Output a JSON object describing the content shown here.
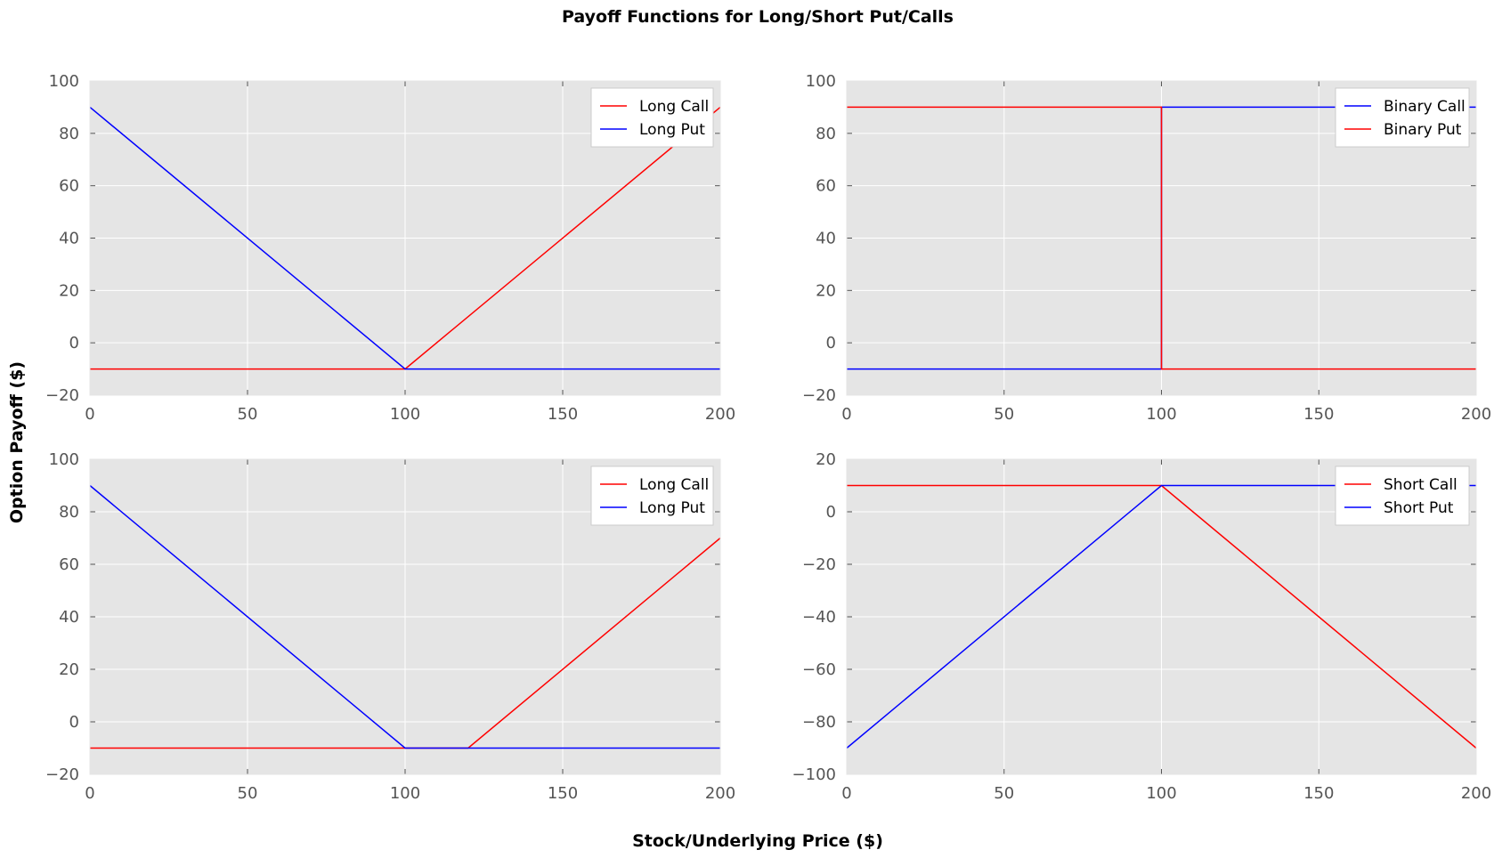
{
  "title": "Payoff Functions for Long/Short Put/Calls",
  "xlabel": "Stock/Underlying Price ($)",
  "ylabel": "Option Payoff ($)",
  "colors": {
    "axes_bg": "#e5e5e5",
    "grid": "#ffffff",
    "red": "#ff0000",
    "blue": "#0000ff"
  },
  "chart_data": [
    {
      "type": "line",
      "xlim": [
        0,
        200
      ],
      "ylim": [
        -20,
        100
      ],
      "xticks": [
        0,
        50,
        100,
        150,
        200
      ],
      "yticks": [
        -20,
        0,
        20,
        40,
        60,
        80,
        100
      ],
      "ytick_labels": [
        "−20",
        "0",
        "20",
        "40",
        "60",
        "80",
        "100"
      ],
      "grid": true,
      "legend_position": "top-right",
      "series": [
        {
          "name": "Long Call",
          "color": "#ff0000",
          "x": [
            0,
            100,
            200
          ],
          "y": [
            -10,
            -10,
            90
          ]
        },
        {
          "name": "Long Put",
          "color": "#0000ff",
          "x": [
            0,
            100,
            200
          ],
          "y": [
            90,
            -10,
            -10
          ]
        }
      ]
    },
    {
      "type": "line",
      "xlim": [
        0,
        200
      ],
      "ylim": [
        -20,
        100
      ],
      "xticks": [
        0,
        50,
        100,
        150,
        200
      ],
      "yticks": [
        -20,
        0,
        20,
        40,
        60,
        80,
        100
      ],
      "ytick_labels": [
        "−20",
        "0",
        "20",
        "40",
        "60",
        "80",
        "100"
      ],
      "grid": true,
      "legend_position": "top-right",
      "series": [
        {
          "name": "Binary Call",
          "color": "#0000ff",
          "x": [
            0,
            100,
            100,
            200
          ],
          "y": [
            -10,
            -10,
            90,
            90
          ]
        },
        {
          "name": "Binary Put",
          "color": "#ff0000",
          "x": [
            0,
            100,
            100,
            200
          ],
          "y": [
            90,
            90,
            -10,
            -10
          ]
        }
      ]
    },
    {
      "type": "line",
      "xlim": [
        0,
        200
      ],
      "ylim": [
        -20,
        100
      ],
      "xticks": [
        0,
        50,
        100,
        150,
        200
      ],
      "yticks": [
        -20,
        0,
        20,
        40,
        60,
        80,
        100
      ],
      "ytick_labels": [
        "−20",
        "0",
        "20",
        "40",
        "60",
        "80",
        "100"
      ],
      "grid": true,
      "legend_position": "top-right",
      "series": [
        {
          "name": "Long Call",
          "color": "#ff0000",
          "x": [
            0,
            120,
            200
          ],
          "y": [
            -10,
            -10,
            70
          ]
        },
        {
          "name": "Long Put",
          "color": "#0000ff",
          "x": [
            0,
            100,
            200
          ],
          "y": [
            90,
            -10,
            -10
          ]
        }
      ]
    },
    {
      "type": "line",
      "xlim": [
        0,
        200
      ],
      "ylim": [
        -100,
        20
      ],
      "xticks": [
        0,
        50,
        100,
        150,
        200
      ],
      "yticks": [
        -100,
        -80,
        -60,
        -40,
        -20,
        0,
        20
      ],
      "ytick_labels": [
        "−100",
        "−80",
        "−60",
        "−40",
        "−20",
        "0",
        "20"
      ],
      "grid": true,
      "legend_position": "top-right",
      "series": [
        {
          "name": "Short Call",
          "color": "#ff0000",
          "x": [
            0,
            100,
            200
          ],
          "y": [
            10,
            10,
            -90
          ]
        },
        {
          "name": "Short Put",
          "color": "#0000ff",
          "x": [
            0,
            100,
            200
          ],
          "y": [
            -90,
            10,
            10
          ]
        }
      ]
    }
  ]
}
